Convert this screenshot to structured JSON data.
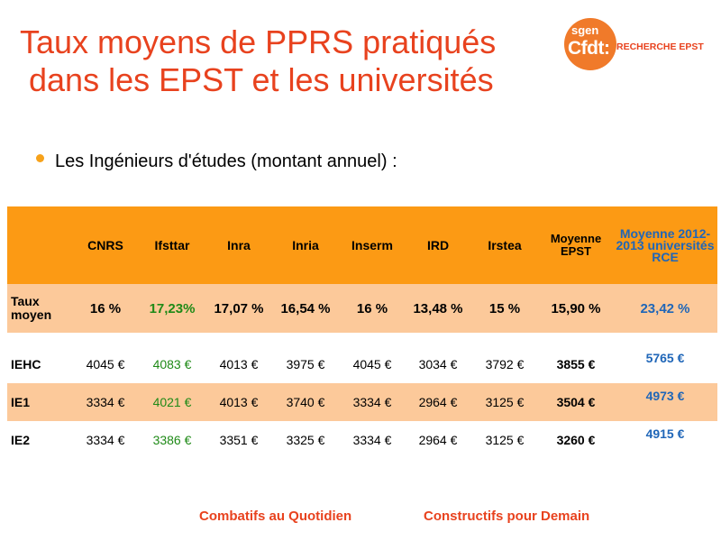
{
  "title": {
    "line1": "Taux moyens de PPRS pratiqués",
    "line2": "dans les EPST et les universités"
  },
  "logo": {
    "sgen": "sgen",
    "cfdt": "Cfdt:",
    "recherche": "RECHERCHE EPST"
  },
  "bullet": "Les Ingénieurs d'études (montant annuel) :",
  "table": {
    "headers": [
      "",
      "CNRS",
      "Ifsttar",
      "Inra",
      "Inria",
      "Inserm",
      "IRD",
      "Irstea",
      "Moyenne EPST",
      "Moyenne 2012-2013 universités RCE"
    ],
    "rows": [
      {
        "label": "Taux moyen",
        "values": [
          "16 %",
          "17,23%",
          "17,07 %",
          "16,54 %",
          "16 %",
          "13,48 %",
          "15 %",
          "15,90 %",
          "23,42 %"
        ]
      },
      {
        "label": "IEHC",
        "values": [
          "4045 €",
          "4083 €",
          "4013 €",
          "3975 €",
          "4045 €",
          "3034 €",
          "3792 €",
          "3855 €",
          "5765 €"
        ]
      },
      {
        "label": "IE1",
        "values": [
          "3334 €",
          "4021 €",
          "4013 €",
          "3740 €",
          "3334 €",
          "2964 €",
          "3125 €",
          "3504 €",
          "4973 €"
        ]
      },
      {
        "label": "IE2",
        "values": [
          "3334 €",
          "3386 €",
          "3351 €",
          "3325 €",
          "3334 €",
          "2964 €",
          "3125 €",
          "3260 €",
          "4915 €"
        ]
      }
    ]
  },
  "footer": {
    "left": "Combatifs au Quotidien",
    "right": "Constructifs pour Demain"
  },
  "colors": {
    "title": "#e8421e",
    "header_bg": "#fc9a14",
    "band_bg": "#fcc99a",
    "green": "#1f8a17",
    "blue": "#1f66b8"
  }
}
